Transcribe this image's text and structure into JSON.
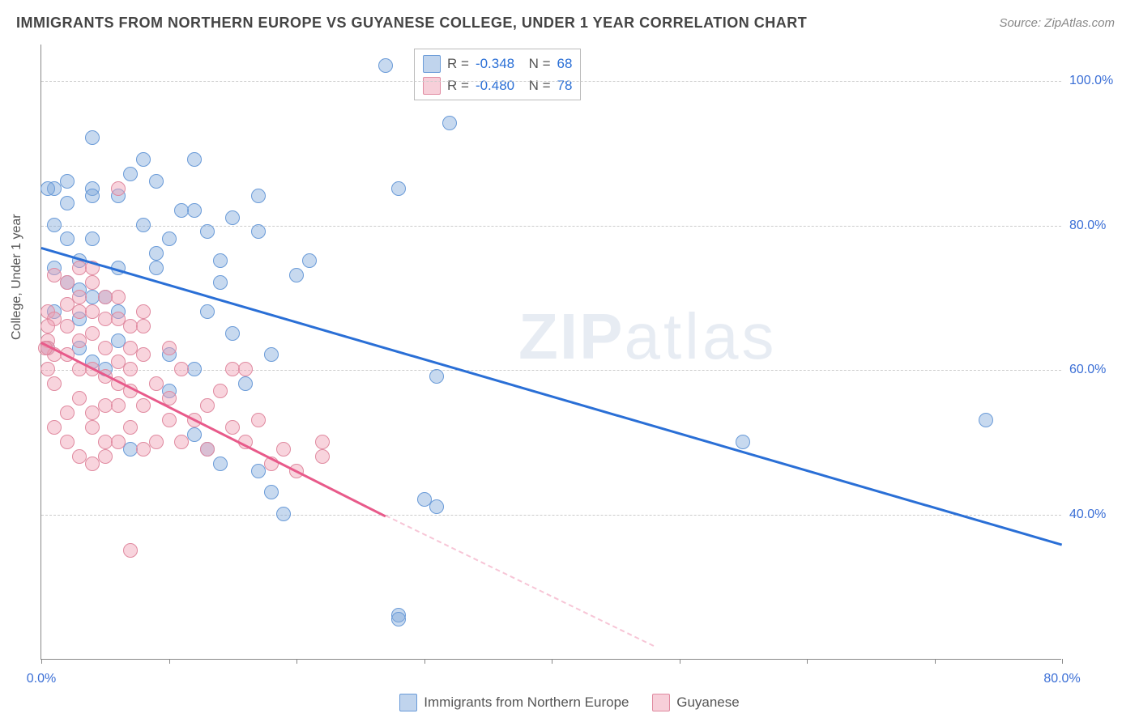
{
  "title": "IMMIGRANTS FROM NORTHERN EUROPE VS GUYANESE COLLEGE, UNDER 1 YEAR CORRELATION CHART",
  "source": "Source: ZipAtlas.com",
  "ylabel": "College, Under 1 year",
  "watermark_a": "ZIP",
  "watermark_b": "atlas",
  "chart": {
    "type": "scatter",
    "xlim": [
      0,
      80
    ],
    "ylim": [
      20,
      105
    ],
    "xticks": [
      0,
      10,
      20,
      30,
      40,
      50,
      60,
      70,
      80
    ],
    "xtick_labels": {
      "0": "0.0%",
      "80": "80.0%"
    },
    "yticks": [
      40,
      60,
      80,
      100
    ],
    "ytick_labels": {
      "40": "40.0%",
      "60": "60.0%",
      "80": "80.0%",
      "100": "100.0%"
    },
    "grid_color": "#cccccc",
    "background_color": "#ffffff",
    "series": [
      {
        "name": "Immigrants from Northern Europe",
        "color_fill": "rgba(130,170,220,0.45)",
        "color_stroke": "#6a9bd8",
        "trend_color": "#2a6fd6",
        "R": "-0.348",
        "N": "68",
        "trend": {
          "x1": 0,
          "y1": 77,
          "x2": 80,
          "y2": 36
        },
        "points": [
          [
            27,
            102
          ],
          [
            32,
            94
          ],
          [
            28,
            85
          ],
          [
            17,
            84
          ],
          [
            1,
            85
          ],
          [
            2,
            83
          ],
          [
            2,
            86
          ],
          [
            4,
            85
          ],
          [
            4,
            84
          ],
          [
            7,
            87
          ],
          [
            9,
            86
          ],
          [
            12,
            89
          ],
          [
            8,
            89
          ],
          [
            4,
            92
          ],
          [
            8,
            80
          ],
          [
            1,
            80
          ],
          [
            12,
            82
          ],
          [
            13,
            79
          ],
          [
            17,
            79
          ],
          [
            20,
            73
          ],
          [
            21,
            75
          ],
          [
            14,
            72
          ],
          [
            14,
            75
          ],
          [
            1,
            74
          ],
          [
            3,
            71
          ],
          [
            6,
            68
          ],
          [
            5,
            70
          ],
          [
            4,
            70
          ],
          [
            13,
            68
          ],
          [
            15,
            65
          ],
          [
            6,
            64
          ],
          [
            10,
            62
          ],
          [
            4,
            61
          ],
          [
            3,
            63
          ],
          [
            10,
            57
          ],
          [
            12,
            60
          ],
          [
            18,
            62
          ],
          [
            16,
            58
          ],
          [
            12,
            51
          ],
          [
            13,
            49
          ],
          [
            14,
            47
          ],
          [
            7,
            49
          ],
          [
            17,
            46
          ],
          [
            18,
            43
          ],
          [
            19,
            40
          ],
          [
            31,
            59
          ],
          [
            30,
            42
          ],
          [
            31,
            41
          ],
          [
            28,
            26
          ],
          [
            28,
            25.5
          ],
          [
            55,
            50
          ],
          [
            74,
            53
          ],
          [
            0.5,
            85
          ],
          [
            0.5,
            63
          ],
          [
            4,
            78
          ],
          [
            2,
            72
          ],
          [
            1,
            68
          ],
          [
            3,
            67
          ],
          [
            6,
            74
          ],
          [
            9,
            74
          ],
          [
            10,
            78
          ],
          [
            11,
            82
          ],
          [
            5,
            60
          ],
          [
            2,
            78
          ],
          [
            3,
            75
          ],
          [
            6,
            84
          ],
          [
            9,
            76
          ],
          [
            15,
            81
          ]
        ]
      },
      {
        "name": "Guyanese",
        "color_fill": "rgba(240,160,180,0.45)",
        "color_stroke": "#e08aa0",
        "trend_color": "#e85a8a",
        "R": "-0.480",
        "N": "78",
        "trend_solid": {
          "x1": 0,
          "y1": 64,
          "x2": 27,
          "y2": 40
        },
        "trend_dashed": {
          "x1": 27,
          "y1": 40,
          "x2": 48,
          "y2": 22
        },
        "points": [
          [
            6,
            85
          ],
          [
            1,
            73
          ],
          [
            0.5,
            68
          ],
          [
            1,
            67
          ],
          [
            2,
            66
          ],
          [
            0.5,
            64
          ],
          [
            0.5,
            63
          ],
          [
            1,
            62
          ],
          [
            0.5,
            60
          ],
          [
            0.3,
            63
          ],
          [
            0.5,
            66
          ],
          [
            2,
            72
          ],
          [
            3,
            74
          ],
          [
            4,
            72
          ],
          [
            3,
            68
          ],
          [
            5,
            67
          ],
          [
            4,
            65
          ],
          [
            6,
            70
          ],
          [
            6,
            67
          ],
          [
            7,
            66
          ],
          [
            5,
            63
          ],
          [
            3,
            64
          ],
          [
            2,
            62
          ],
          [
            1,
            58
          ],
          [
            3,
            60
          ],
          [
            4,
            60
          ],
          [
            5,
            59
          ],
          [
            6,
            61
          ],
          [
            7,
            63
          ],
          [
            8,
            66
          ],
          [
            8,
            62
          ],
          [
            7,
            60
          ],
          [
            6,
            58
          ],
          [
            5,
            55
          ],
          [
            4,
            54
          ],
          [
            3,
            56
          ],
          [
            2,
            54
          ],
          [
            4,
            52
          ],
          [
            5,
            50
          ],
          [
            6,
            50
          ],
          [
            3,
            48
          ],
          [
            4,
            47
          ],
          [
            5,
            48
          ],
          [
            2,
            50
          ],
          [
            1,
            52
          ],
          [
            7,
            52
          ],
          [
            8,
            55
          ],
          [
            9,
            58
          ],
          [
            10,
            56
          ],
          [
            11,
            60
          ],
          [
            10,
            53
          ],
          [
            11,
            50
          ],
          [
            12,
            53
          ],
          [
            13,
            55
          ],
          [
            14,
            57
          ],
          [
            15,
            52
          ],
          [
            15,
            60
          ],
          [
            16,
            50
          ],
          [
            17,
            53
          ],
          [
            18,
            47
          ],
          [
            19,
            49
          ],
          [
            16,
            60
          ],
          [
            10,
            63
          ],
          [
            5,
            70
          ],
          [
            6,
            55
          ],
          [
            8,
            49
          ],
          [
            9,
            50
          ],
          [
            13,
            49
          ],
          [
            20,
            46
          ],
          [
            22,
            48
          ],
          [
            22,
            50
          ],
          [
            7,
            35
          ],
          [
            7,
            57
          ],
          [
            4,
            74
          ],
          [
            2,
            69
          ],
          [
            3,
            70
          ],
          [
            4,
            68
          ],
          [
            8,
            68
          ]
        ]
      }
    ]
  },
  "bottom_legend": [
    {
      "label": "Immigrants from Northern Europe",
      "class": "blue"
    },
    {
      "label": "Guyanese",
      "class": "pink"
    }
  ]
}
